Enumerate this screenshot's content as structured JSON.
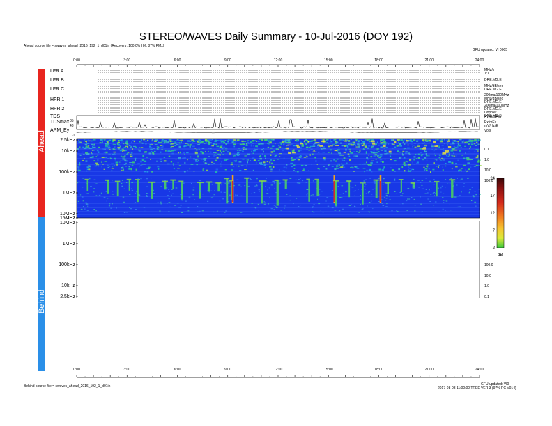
{
  "header": {
    "title": "STEREO/WAVES Daily Summary - 10-Jul-2016 (DOY 192)",
    "ahead_source": "Ahead source file = swaves_ahead_2016_192_1_d01in (Recovery: 100.0% HK, 87% PMx)",
    "top_right_note": "GFU updated: VI 0005",
    "behind_source": "Behind source file = swaves_ahead_2016_192_1_d01in",
    "bottom_right_note_1": "GFU updated: VI0",
    "bottom_right_note_2": "2017-08-08 11:00:00 TREE VER 3 (97% PC V014)"
  },
  "sidebar": {
    "ahead_label": "Ahead",
    "behind_label": "Behind"
  },
  "time_axis": {
    "ticks": [
      "0:00",
      "3:00",
      "6:00",
      "9:00",
      "12:00",
      "15:00",
      "18:00",
      "21:00",
      "24:00"
    ]
  },
  "hk_panels": [
    {
      "label": "LFR A",
      "right": "MHz/s\n1:1"
    },
    {
      "label": "LFR B",
      "right": "DRE.MG.E"
    },
    {
      "label": "LFR C",
      "right": "MHz/dB/sec\nDRE.MG.E"
    },
    {
      "label": "HFR 1",
      "right": "200ma/100MHz\nMHz/dB/sec\nDRE.MG.E\n200ma/100MHz\nDRE.MG.E"
    },
    {
      "label": "HFR 2",
      "right": "Doppler\nDRE.MG.E"
    },
    {
      "label": "TDS",
      "right": "PWR/SPW"
    },
    {
      "label": "TDSmax",
      "right": "Ex/mEx\nmV/Hz/E"
    },
    {
      "label": "APM_Ey",
      "right": "Vols"
    }
  ],
  "tdsmax_ticks": [
    "85",
    "48"
  ],
  "apm_tick": "-1",
  "chart_data": {
    "type": "heatmap",
    "title": "STEREO/WAVES Daily Summary - 10-Jul-2016 (DOY 192)",
    "x": {
      "label": "",
      "range": [
        0,
        24
      ],
      "ticks": [
        "0:00",
        "3:00",
        "6:00",
        "9:00",
        "12:00",
        "15:00",
        "18:00",
        "21:00",
        "24:00"
      ]
    },
    "ahead": {
      "y_ticks": [
        "2.5kHz",
        "10kHz",
        "100kHz",
        "1MHz",
        "10MHz",
        "16MHz"
      ],
      "right_ticks": [
        "0.1",
        "1.0",
        "10.0",
        "100.0"
      ],
      "background_color": "#1838e6",
      "bursts_hours": [
        0.6,
        1.8,
        2.4,
        3.1,
        3.6,
        4.4,
        5.2,
        5.7,
        6.2,
        7.3,
        7.8,
        8.4,
        8.9,
        9.2,
        10.1,
        11.0,
        11.9,
        12.4,
        13.8,
        14.3,
        15.4,
        16.2,
        17.0,
        17.8,
        18.5,
        19.3,
        20.0,
        21.4,
        22.3
      ],
      "strong_burst_hours": [
        9.25,
        15.3,
        18.05
      ]
    },
    "behind": {
      "y_ticks": [
        "16MHz",
        "10MHz",
        "1MHz",
        "100kHz",
        "10kHz",
        "2.5kHz"
      ],
      "right_ticks": [
        "100.0",
        "10.0",
        "1.0",
        "0.1"
      ],
      "has_data": false
    },
    "colorbar": {
      "ticks": [
        "24",
        "17",
        "12",
        "7",
        "2"
      ],
      "unit": "dB",
      "colors": [
        "#4a0a0a",
        "#9b1010",
        "#d8281e",
        "#f0781e",
        "#f8c832",
        "#e8e83c",
        "#8cdc3c",
        "#32c832"
      ]
    }
  }
}
